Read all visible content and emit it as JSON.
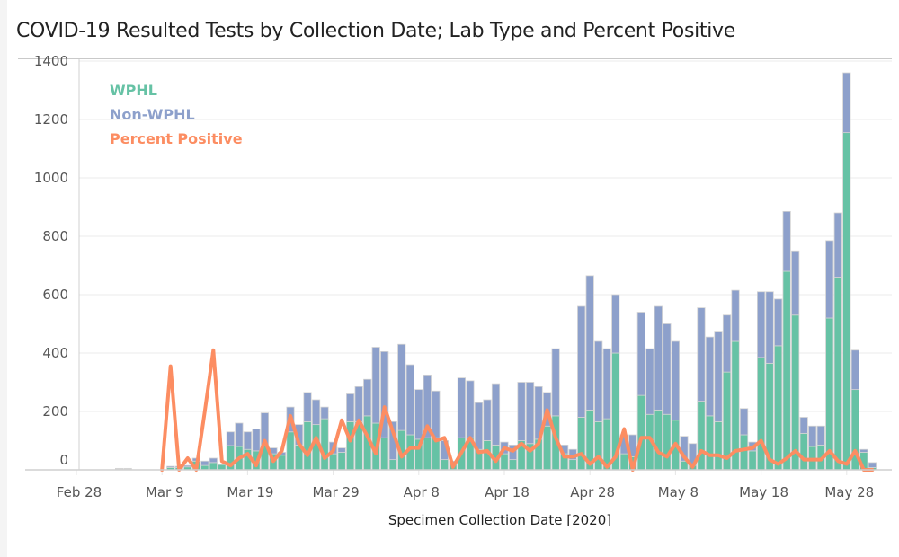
{
  "chart_data": {
    "type": "bar",
    "stacked": true,
    "title": "COVID-19 Resulted Tests by Collection Date; Lab Type and Percent Positive",
    "xlabel": "Specimen Collection Date [2020]",
    "ylabel": "",
    "ylim": [
      0,
      1400
    ],
    "yticks": [
      0,
      200,
      400,
      600,
      800,
      1000,
      1200,
      1400
    ],
    "ytick_labels": [
      "0",
      "200",
      "400",
      "600",
      "800",
      "1000",
      "1200",
      "1400"
    ],
    "xtick_labels": [
      "Feb 28",
      "Mar 9",
      "Mar 19",
      "Mar 29",
      "Apr 8",
      "Apr 18",
      "Apr 28",
      "May 8",
      "May 18",
      "May 28"
    ],
    "xtick_days": [
      0,
      10,
      20,
      30,
      40,
      50,
      60,
      70,
      80,
      90
    ],
    "x_start": "Feb 28",
    "x_unit": "days since Feb 28",
    "grid": true,
    "legend_position": "top-left",
    "legend": [
      {
        "label": "WPHL",
        "color": "#66c2a5"
      },
      {
        "label": "Non-WPHL",
        "color": "#8da0cb"
      },
      {
        "label": "Percent Positive",
        "color": "#fc8d62"
      }
    ],
    "days": [
      5,
      6,
      11,
      12,
      13,
      14,
      15,
      16,
      17,
      18,
      19,
      20,
      21,
      22,
      23,
      24,
      25,
      26,
      27,
      28,
      29,
      30,
      31,
      32,
      33,
      34,
      35,
      36,
      37,
      38,
      39,
      40,
      41,
      42,
      43,
      44,
      45,
      46,
      47,
      48,
      49,
      50,
      51,
      52,
      53,
      54,
      55,
      56,
      57,
      58,
      59,
      60,
      61,
      62,
      63,
      64,
      65,
      66,
      67,
      68,
      69,
      70,
      71,
      72,
      73,
      74,
      75,
      76,
      77,
      78,
      79,
      80,
      81,
      82,
      83,
      84,
      85,
      86,
      87,
      88,
      89,
      90,
      91,
      92,
      93
    ],
    "series": [
      {
        "name": "WPHL",
        "values": [
          0,
          0,
          8,
          8,
          10,
          30,
          15,
          25,
          18,
          83,
          80,
          70,
          65,
          85,
          55,
          50,
          130,
          85,
          165,
          155,
          175,
          55,
          60,
          165,
          165,
          185,
          160,
          110,
          35,
          135,
          120,
          105,
          110,
          110,
          35,
          25,
          110,
          110,
          70,
          100,
          85,
          55,
          35,
          100,
          90,
          105,
          150,
          185,
          55,
          35,
          180,
          205,
          165,
          175,
          400,
          55,
          45,
          255,
          190,
          205,
          190,
          170,
          30,
          15,
          235,
          185,
          165,
          335,
          440,
          120,
          65,
          385,
          365,
          425,
          680,
          530,
          125,
          80,
          85,
          520,
          660,
          1155,
          275,
          60,
          8
        ]
      },
      {
        "name": "Non-WPHL",
        "values": [
          5,
          5,
          4,
          4,
          5,
          10,
          15,
          15,
          2,
          47,
          80,
          60,
          75,
          110,
          20,
          10,
          85,
          70,
          100,
          85,
          40,
          40,
          15,
          95,
          120,
          125,
          260,
          295,
          130,
          295,
          240,
          170,
          215,
          160,
          65,
          5,
          205,
          195,
          160,
          140,
          210,
          40,
          50,
          200,
          210,
          180,
          115,
          230,
          30,
          35,
          380,
          460,
          275,
          240,
          200,
          65,
          75,
          285,
          225,
          355,
          310,
          270,
          85,
          75,
          320,
          270,
          310,
          195,
          175,
          90,
          30,
          225,
          245,
          160,
          205,
          220,
          55,
          70,
          65,
          265,
          220,
          205,
          135,
          10,
          17
        ]
      }
    ],
    "line_series": {
      "name": "Percent Positive",
      "axis": "secondary (hidden); values expressed in left-axis-equivalent units",
      "days": [
        10,
        11,
        12,
        13,
        14,
        15,
        16,
        17,
        18,
        19,
        20,
        21,
        22,
        23,
        24,
        25,
        26,
        27,
        28,
        29,
        30,
        31,
        32,
        33,
        34,
        35,
        36,
        37,
        38,
        39,
        40,
        41,
        42,
        43,
        44,
        45,
        46,
        47,
        48,
        49,
        50,
        51,
        52,
        53,
        54,
        55,
        56,
        57,
        58,
        59,
        60,
        61,
        62,
        63,
        64,
        65,
        66,
        67,
        68,
        69,
        70,
        71,
        72,
        73,
        74,
        75,
        76,
        77,
        78,
        79,
        80,
        81,
        82,
        83,
        84,
        85,
        86,
        87,
        88,
        89,
        90,
        91,
        92,
        93
      ],
      "values": [
        0,
        355,
        0,
        40,
        0,
        200,
        410,
        30,
        15,
        40,
        55,
        15,
        100,
        30,
        65,
        185,
        90,
        50,
        110,
        40,
        65,
        170,
        100,
        170,
        115,
        55,
        215,
        130,
        45,
        75,
        75,
        150,
        100,
        110,
        10,
        60,
        110,
        60,
        65,
        30,
        75,
        65,
        90,
        65,
        90,
        205,
        110,
        45,
        45,
        55,
        20,
        45,
        10,
        45,
        140,
        0,
        110,
        110,
        60,
        45,
        90,
        45,
        10,
        65,
        50,
        50,
        40,
        65,
        70,
        75,
        100,
        35,
        20,
        40,
        65,
        35,
        35,
        35,
        65,
        30,
        20,
        65,
        0,
        0
      ]
    }
  }
}
